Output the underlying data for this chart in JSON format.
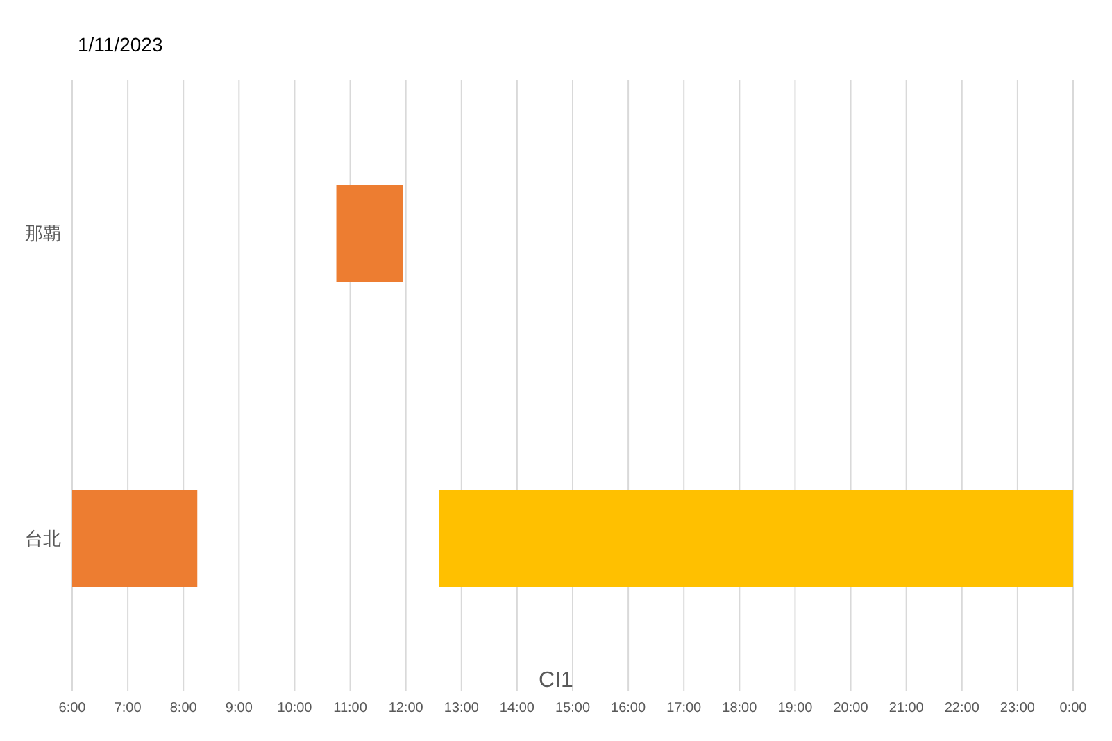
{
  "chart_data": {
    "type": "bar",
    "orientation": "horizontal",
    "title": "1/11/2023",
    "xlabel": "CI1",
    "categories": [
      "那覇",
      "台北"
    ],
    "series": [
      {
        "color": "#ed7d31",
        "base": [
          10.75,
          6
        ],
        "values": [
          1.2,
          2.25
        ]
      },
      {
        "color": "#ffc000",
        "base": [
          null,
          12.6
        ],
        "values": [
          null,
          11.4
        ]
      }
    ],
    "xlim": [
      6,
      24
    ],
    "xticks": [
      {
        "value": 6,
        "label": "6:00"
      },
      {
        "value": 7,
        "label": "7:00"
      },
      {
        "value": 8,
        "label": "8:00"
      },
      {
        "value": 9,
        "label": "9:00"
      },
      {
        "value": 10,
        "label": "10:00"
      },
      {
        "value": 11,
        "label": "11:00"
      },
      {
        "value": 12,
        "label": "12:00"
      },
      {
        "value": 13,
        "label": "13:00"
      },
      {
        "value": 14,
        "label": "14:00"
      },
      {
        "value": 15,
        "label": "15:00"
      },
      {
        "value": 16,
        "label": "16:00"
      },
      {
        "value": 17,
        "label": "17:00"
      },
      {
        "value": 18,
        "label": "18:00"
      },
      {
        "value": 19,
        "label": "19:00"
      },
      {
        "value": 20,
        "label": "20:00"
      },
      {
        "value": 21,
        "label": "21:00"
      },
      {
        "value": 22,
        "label": "22:00"
      },
      {
        "value": 23,
        "label": "23:00"
      },
      {
        "value": 24,
        "label": "0:00"
      }
    ],
    "grid": "x",
    "legend": false
  }
}
